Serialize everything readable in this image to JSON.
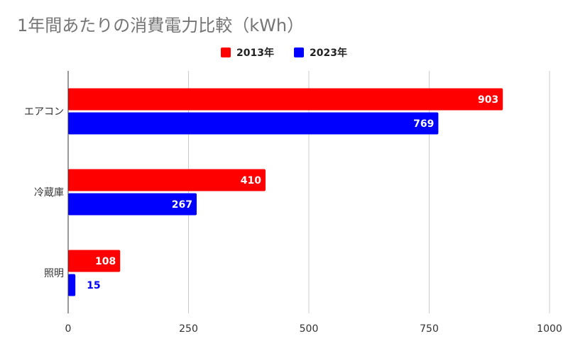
{
  "chart_data": {
    "type": "bar",
    "orientation": "horizontal",
    "title": "1年間あたりの消費電力比較（kWh）",
    "categories": [
      "エアコン",
      "冷蔵庫",
      "照明"
    ],
    "series": [
      {
        "name": "2013年",
        "color": "#ff0000",
        "values": [
          903,
          410,
          108
        ]
      },
      {
        "name": "2023年",
        "color": "#0000ff",
        "values": [
          769,
          267,
          15
        ]
      }
    ],
    "xlim": [
      0,
      1000
    ],
    "xticks": [
      0,
      250,
      500,
      750,
      1000
    ],
    "grid": true,
    "legend_position": "top-center"
  }
}
